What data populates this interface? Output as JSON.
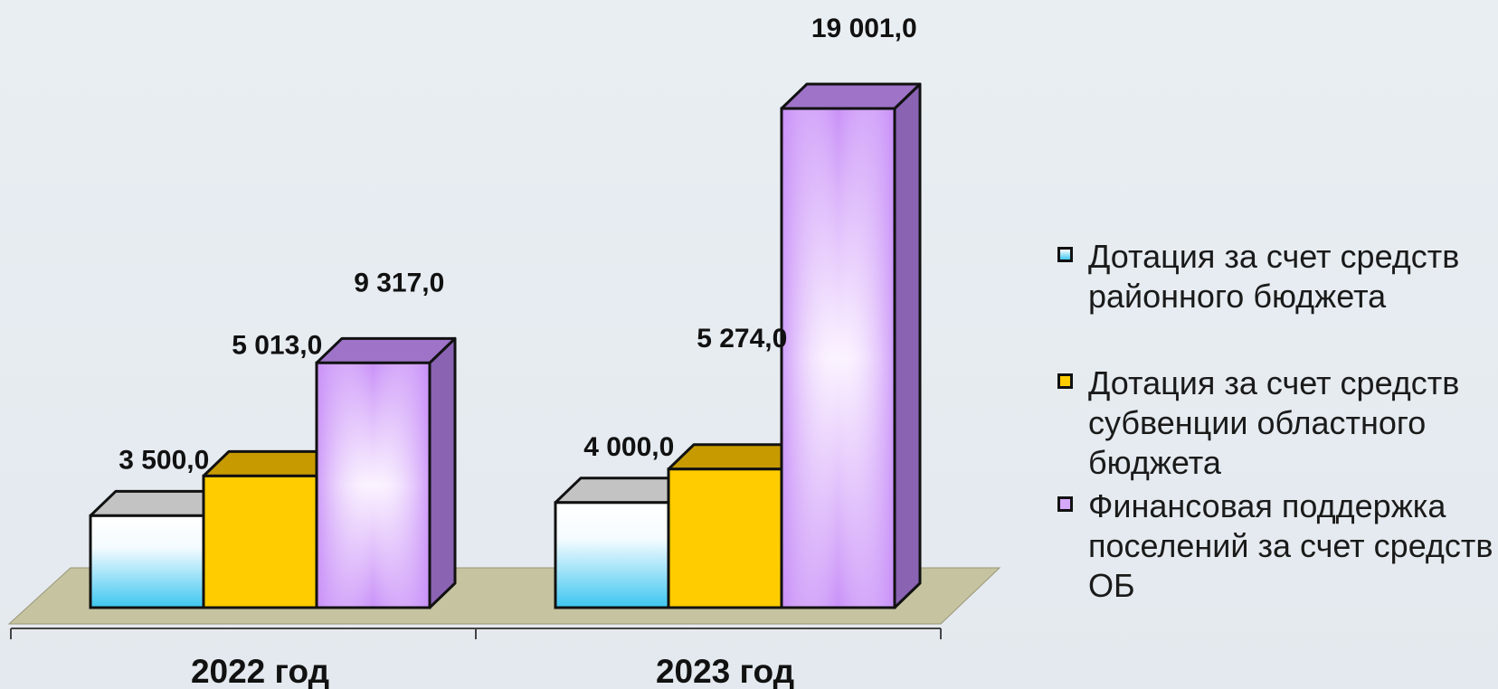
{
  "chart_data": {
    "type": "bar",
    "categories": [
      "2022 год",
      "2023 год"
    ],
    "series": [
      {
        "name": "Дотация за счет средств районного бюджета",
        "values": [
          3500.0,
          4000.0
        ],
        "value_labels": [
          "3 500,0",
          "4 000,0"
        ]
      },
      {
        "name": "Дотация за счет средств субвенции областного бюджета",
        "values": [
          5013.0,
          5274.0
        ],
        "value_labels": [
          "5 013,0",
          "5 274,0"
        ]
      },
      {
        "name": "Финансовая поддержка поселений за счет средств ОБ",
        "values": [
          9317.0,
          19001.0
        ],
        "value_labels": [
          "9 317,0",
          "19 001,0"
        ]
      }
    ],
    "legend_position": "right",
    "grid": false,
    "style": "3d"
  },
  "colors": {
    "series": [
      {
        "front_top": "#ffffff",
        "front_bottom": "#3dc6f0",
        "top": "#c3c3c3",
        "side": "#9aa0a6"
      },
      {
        "front_top": "#ffcc00",
        "front_bottom": "#ffcc00",
        "top": "#c79a00",
        "side": "#b88e00"
      },
      {
        "front_top": "#c991f8",
        "front_mid": "#fbf3ff",
        "front_bottom": "#c991f8",
        "top": "#9e73c8",
        "side": "#8a63b3"
      }
    ],
    "floor": "#c6c3a0",
    "outline": "#111111"
  }
}
